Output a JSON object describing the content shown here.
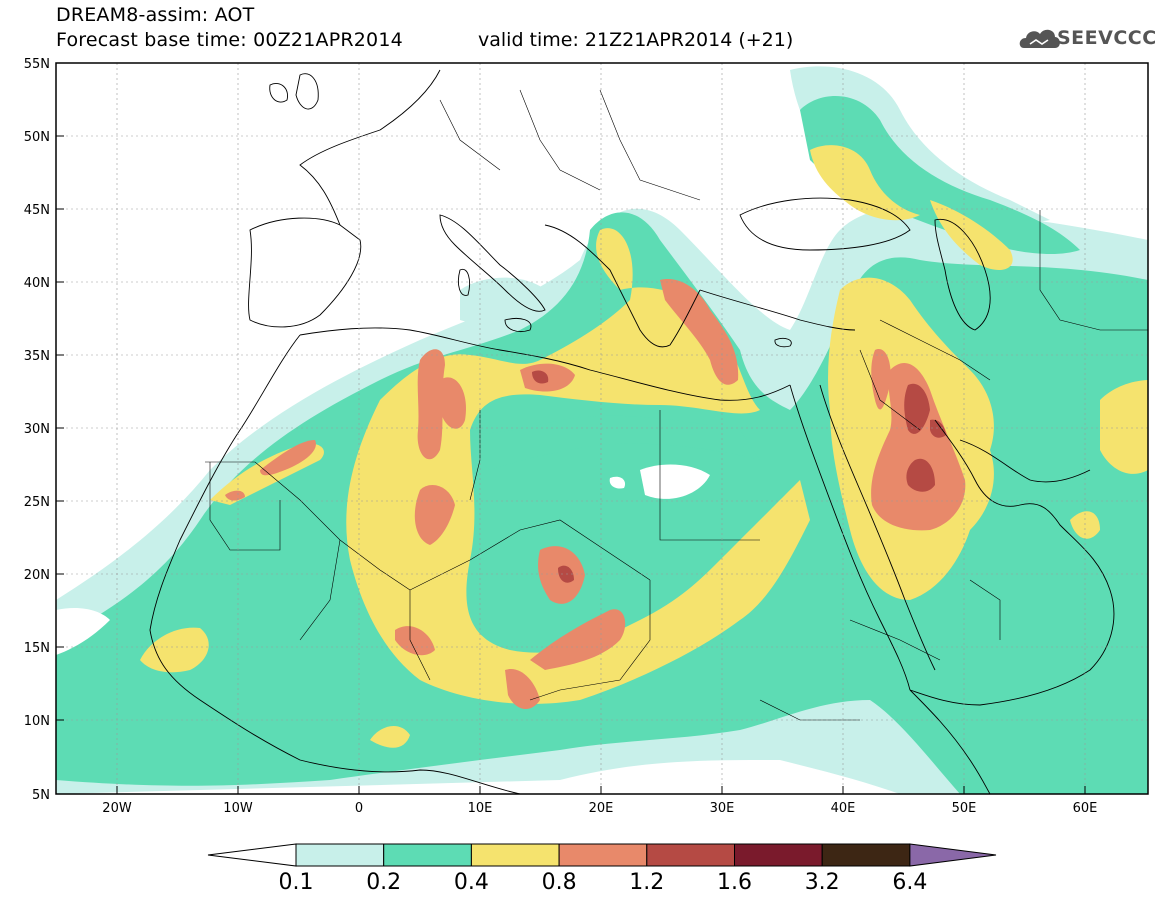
{
  "title": {
    "line1": "DREAM8-assim: AOT",
    "line2": "Forecast base time: 00Z21APR2014",
    "line2b": "valid time: 21Z21APR2014 (+21)"
  },
  "logo": {
    "text": "SEEVCCC",
    "icon": "cloud-icon"
  },
  "axes": {
    "lat_labels": [
      "55N",
      "50N",
      "45N",
      "40N",
      "35N",
      "30N",
      "25N",
      "20N",
      "15N",
      "10N",
      "5N"
    ],
    "lon_labels": [
      "20W",
      "10W",
      "0",
      "10E",
      "20E",
      "30E",
      "40E",
      "50E",
      "60E"
    ],
    "lon_range": [
      -25,
      65
    ],
    "lat_range": [
      5,
      55
    ]
  },
  "colorbar": {
    "levels": [
      "0.1",
      "0.2",
      "0.4",
      "0.8",
      "1.2",
      "1.6",
      "3.2",
      "6.4"
    ],
    "colors": [
      "#c8f0ea",
      "#5ddcb4",
      "#f5e36e",
      "#e8896a",
      "#b54a44",
      "#7a1a2c",
      "#3d2614",
      "#8a68a8"
    ],
    "under_color": "#ffffff"
  }
}
